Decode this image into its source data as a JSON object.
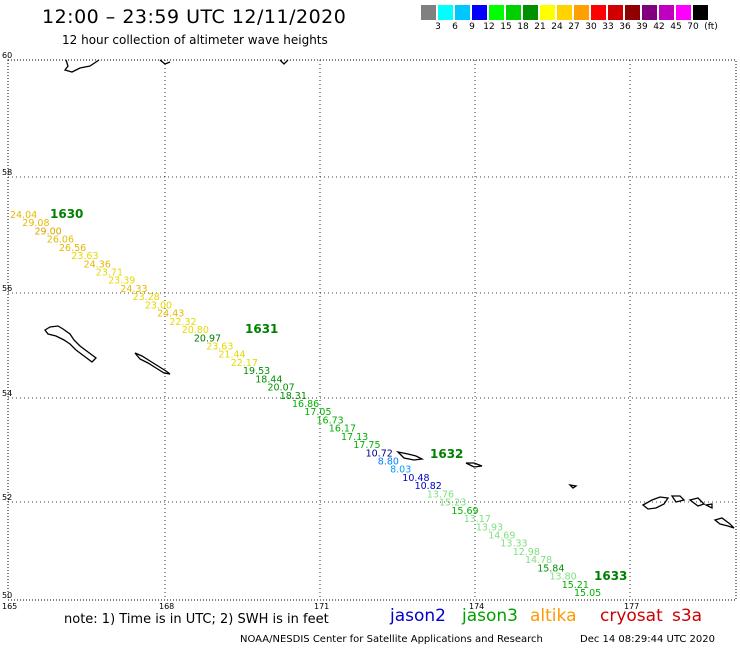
{
  "header": {
    "title": "12:00 – 23:59 UTC 12/11/2020",
    "subtitle": "12 hour collection of altimeter wave heights"
  },
  "colorbar": {
    "unit": "(ft)",
    "colors": [
      "#808080",
      "#00ffff",
      "#00c8ff",
      "#0000ff",
      "#00ff00",
      "#00d000",
      "#009000",
      "#ffff00",
      "#ffd200",
      "#ffa000",
      "#ff0000",
      "#d00000",
      "#900000",
      "#800080",
      "#c000c0",
      "#ff00ff",
      "#000000"
    ],
    "labels": [
      "3",
      "6",
      "9",
      "12",
      "15",
      "18",
      "21",
      "24",
      "27",
      "30",
      "33",
      "36",
      "39",
      "42",
      "45",
      "70"
    ]
  },
  "axes": {
    "lat_labels": [
      "60",
      "58",
      "56",
      "54",
      "52",
      "50"
    ],
    "lon_labels": [
      "165",
      "168",
      "171",
      "174",
      "177"
    ]
  },
  "passes": [
    {
      "label": "1630",
      "color": "#008000"
    },
    {
      "label": "1631",
      "color": "#008000"
    },
    {
      "label": "1632",
      "color": "#008000"
    },
    {
      "label": "1633",
      "color": "#008000"
    }
  ],
  "track_values": [
    {
      "v": "24.04",
      "c": "#e6b800"
    },
    {
      "v": "29.08",
      "c": "#e6b800"
    },
    {
      "v": "29.00",
      "c": "#e0a000"
    },
    {
      "v": "26.06",
      "c": "#e6b800"
    },
    {
      "v": "26.56",
      "c": "#e6b800"
    },
    {
      "v": "23.63",
      "c": "#e6d800"
    },
    {
      "v": "24.36",
      "c": "#e6b800"
    },
    {
      "v": "23.71",
      "c": "#e6d800"
    },
    {
      "v": "23.39",
      "c": "#e6d800"
    },
    {
      "v": "24.33",
      "c": "#e6b800"
    },
    {
      "v": "23.28",
      "c": "#e6d800"
    },
    {
      "v": "23.00",
      "c": "#e6d800"
    },
    {
      "v": "24.43",
      "c": "#e6b800"
    },
    {
      "v": "22.32",
      "c": "#e6d800"
    },
    {
      "v": "20.80",
      "c": "#e6d800"
    },
    {
      "v": "20.97",
      "c": "#008000"
    },
    {
      "v": "23.63",
      "c": "#e6d800"
    },
    {
      "v": "21.44",
      "c": "#e6d800"
    },
    {
      "v": "22.17",
      "c": "#e6d800"
    },
    {
      "v": "19.53",
      "c": "#009000"
    },
    {
      "v": "18.44",
      "c": "#009000"
    },
    {
      "v": "20.07",
      "c": "#009000"
    },
    {
      "v": "18.31",
      "c": "#009000"
    },
    {
      "v": "16.86",
      "c": "#00b000"
    },
    {
      "v": "17.05",
      "c": "#00b000"
    },
    {
      "v": "16.73",
      "c": "#00b000"
    },
    {
      "v": "16.17",
      "c": "#00b000"
    },
    {
      "v": "17.13",
      "c": "#00b000"
    },
    {
      "v": "17.75",
      "c": "#00b000"
    },
    {
      "v": "10.72",
      "c": "#000080"
    },
    {
      "v": "8.80",
      "c": "#0080ff"
    },
    {
      "v": "8.03",
      "c": "#00a0ff"
    },
    {
      "v": "10.48",
      "c": "#0000c0"
    },
    {
      "v": "10.82",
      "c": "#0000c0"
    },
    {
      "v": "13.76",
      "c": "#80e080"
    },
    {
      "v": "15.23",
      "c": "#80e080"
    },
    {
      "v": "15.69",
      "c": "#00b000"
    },
    {
      "v": "13.17",
      "c": "#80e080"
    },
    {
      "v": "13.93",
      "c": "#80e080"
    },
    {
      "v": "14.69",
      "c": "#80e080"
    },
    {
      "v": "13.33",
      "c": "#80e080"
    },
    {
      "v": "12.98",
      "c": "#80e080"
    },
    {
      "v": "14.78",
      "c": "#80e080"
    },
    {
      "v": "15.84",
      "c": "#009000"
    },
    {
      "v": "13.80",
      "c": "#80e080"
    },
    {
      "v": "15.21",
      "c": "#00b000"
    },
    {
      "v": "15.05",
      "c": "#00b000"
    }
  ],
  "footer": {
    "note": "note: 1) Time is in UTC; 2) SWH is in feet",
    "satellites": [
      {
        "name": "jason2",
        "color": "#0000cc"
      },
      {
        "name": "jason3",
        "color": "#00a000"
      },
      {
        "name": "altika",
        "color": "#ff9900"
      },
      {
        "name": "cryosat",
        "color": "#cc0000"
      },
      {
        "name": "s3a",
        "color": "#cc0000"
      }
    ],
    "credit": "NOAA/NESDIS Center for Satellite Applications and Research",
    "timestamp": "Dec 14 08:29:44 UTC 2020"
  }
}
